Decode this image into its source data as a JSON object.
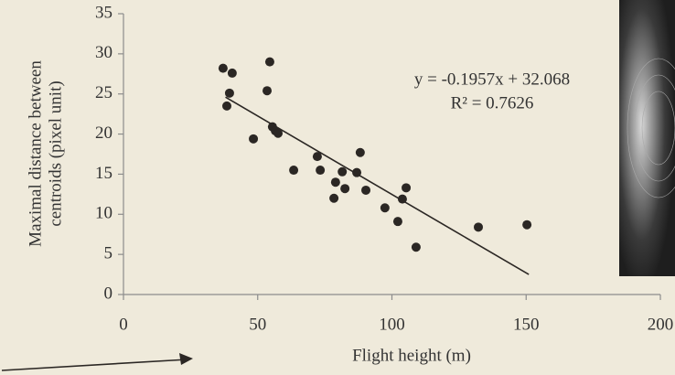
{
  "chart_data": {
    "type": "scatter",
    "xlabel": "Flight height (m)",
    "ylabel": [
      "Maximal distance between",
      "centroids  (pixel unit)"
    ],
    "annotations": [
      "y = -0.1957x + 32.068",
      "R² = 0.7626"
    ],
    "xlim": [
      0,
      200
    ],
    "xticks": [
      0,
      50,
      100,
      150,
      200
    ],
    "ylim": [
      0,
      35
    ],
    "yticks": [
      0,
      5,
      10,
      15,
      20,
      25,
      30,
      35
    ],
    "color": "#2b2724",
    "x": [
      37.1,
      40.5,
      54.5,
      53.5,
      39.5,
      38.5,
      55.5,
      56.6,
      57.6,
      48.4,
      63.4,
      72.2,
      73.3,
      88.2,
      79.0,
      81.5,
      82.5,
      78.4,
      86.9,
      90.3,
      97.4,
      103.9,
      105.3,
      102.2,
      109.0,
      132.2,
      150.3
    ],
    "values": [
      28.2,
      27.6,
      29.0,
      25.4,
      25.1,
      23.5,
      20.9,
      20.4,
      20.1,
      19.4,
      15.5,
      17.2,
      15.5,
      17.7,
      14.0,
      15.3,
      13.2,
      12.0,
      15.2,
      13.0,
      10.8,
      11.9,
      13.3,
      9.1,
      5.9,
      8.4,
      8.7
    ],
    "trendline": {
      "x": [
        38,
        151
      ],
      "values": [
        24.6,
        2.5
      ],
      "color": "#2b2724"
    }
  }
}
